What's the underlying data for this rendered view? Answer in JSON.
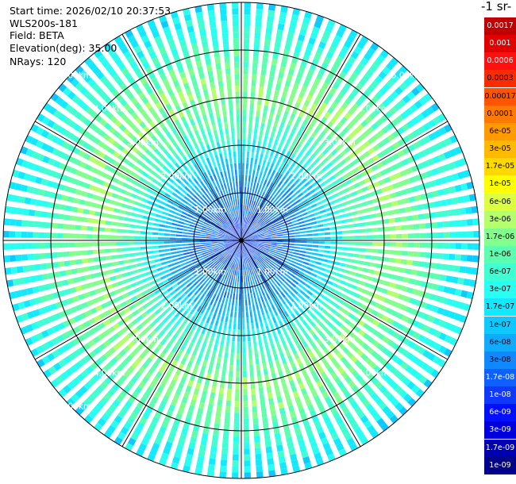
{
  "info": {
    "start_time": "Start time: 2026/02/10 20:37:53",
    "device": "WLS200s-181",
    "field": "Field: BETA",
    "elevation": "Elevation(deg): 35.00",
    "nrays": "NRays: 120"
  },
  "colorbar": {
    "title": "-1 sr-",
    "levels": [
      {
        "label": "0.0017",
        "color": "#c00000"
      },
      {
        "label": "0.001",
        "color": "#e00000"
      },
      {
        "label": "0.0006",
        "color": "#ff1010"
      },
      {
        "label": "0.0003",
        "color": "#ff2a00"
      },
      {
        "label": "0.00017",
        "color": "#ff5500"
      },
      {
        "label": "0.0001",
        "color": "#ff7a00"
      },
      {
        "label": "6e-05",
        "color": "#ff9a00"
      },
      {
        "label": "3e-05",
        "color": "#ffba00"
      },
      {
        "label": "1.7e-05",
        "color": "#ffd800"
      },
      {
        "label": "1e-05",
        "color": "#ffff00"
      },
      {
        "label": "6e-06",
        "color": "#dcff40"
      },
      {
        "label": "3e-06",
        "color": "#b4ff6a"
      },
      {
        "label": "1.7e-06",
        "color": "#82ff8c"
      },
      {
        "label": "1e-06",
        "color": "#5cffb0"
      },
      {
        "label": "6e-07",
        "color": "#40ffd2"
      },
      {
        "label": "3e-07",
        "color": "#28fff0"
      },
      {
        "label": "1.7e-07",
        "color": "#14e8ff"
      },
      {
        "label": "1e-07",
        "color": "#10c8ff"
      },
      {
        "label": "6e-08",
        "color": "#10aaff"
      },
      {
        "label": "3e-08",
        "color": "#1088ff"
      },
      {
        "label": "1.7e-08",
        "color": "#1060ff"
      },
      {
        "label": "1e-08",
        "color": "#1038ff"
      },
      {
        "label": "6e-09",
        "color": "#0010ff"
      },
      {
        "label": "3e-09",
        "color": "#0000dc"
      },
      {
        "label": "1.7e-09",
        "color": "#0000b0"
      },
      {
        "label": "1e-09",
        "color": "#000088"
      }
    ]
  },
  "chart_data": {
    "type": "heatmap",
    "projection": "polar",
    "max_range_km": 5.0,
    "ring_ranges_km": [
      1,
      2,
      3,
      4,
      5
    ],
    "spoke_directions_deg": [
      0,
      30,
      60,
      90,
      120,
      150,
      180,
      210,
      240,
      270,
      300,
      330
    ],
    "ring_label_sets": [
      {
        "range_km": 1,
        "labels": [
          "1.00km",
          "1.00km",
          "1.00km",
          "1.00km"
        ]
      },
      {
        "range_km": 2,
        "labels": [
          "2.00km",
          "2.00km",
          "2.00km",
          "2.00km"
        ]
      },
      {
        "range_km": 3,
        "labels": [
          "3.00km",
          "3.00km",
          "3.00km",
          "3.00km"
        ]
      },
      {
        "range_km": 4,
        "labels": [
          "4.00km",
          "4.00km",
          "4.00km",
          "4.00km"
        ]
      },
      {
        "range_km": 5,
        "labels": [
          "5.00km",
          "5.00km",
          "5.00km"
        ]
      }
    ],
    "label_angles_deg": [
      315,
      45,
      225,
      135
    ],
    "radial_profile": [
      {
        "range_km": 0.0,
        "level": 21
      },
      {
        "range_km": 0.6,
        "level": 20
      },
      {
        "range_km": 1.0,
        "level": 19
      },
      {
        "range_km": 1.4,
        "level": 18
      },
      {
        "range_km": 1.8,
        "level": 16
      },
      {
        "range_km": 2.2,
        "level": 14
      },
      {
        "range_km": 2.6,
        "level": 13
      },
      {
        "range_km": 3.0,
        "level": 12
      },
      {
        "range_km": 3.4,
        "level": 12
      },
      {
        "range_km": 3.8,
        "level": 13
      },
      {
        "range_km": 4.2,
        "level": 14
      },
      {
        "range_km": 4.6,
        "level": 15
      },
      {
        "range_km": 5.0,
        "level": 16
      }
    ],
    "xlabel": "",
    "ylabel": ""
  }
}
